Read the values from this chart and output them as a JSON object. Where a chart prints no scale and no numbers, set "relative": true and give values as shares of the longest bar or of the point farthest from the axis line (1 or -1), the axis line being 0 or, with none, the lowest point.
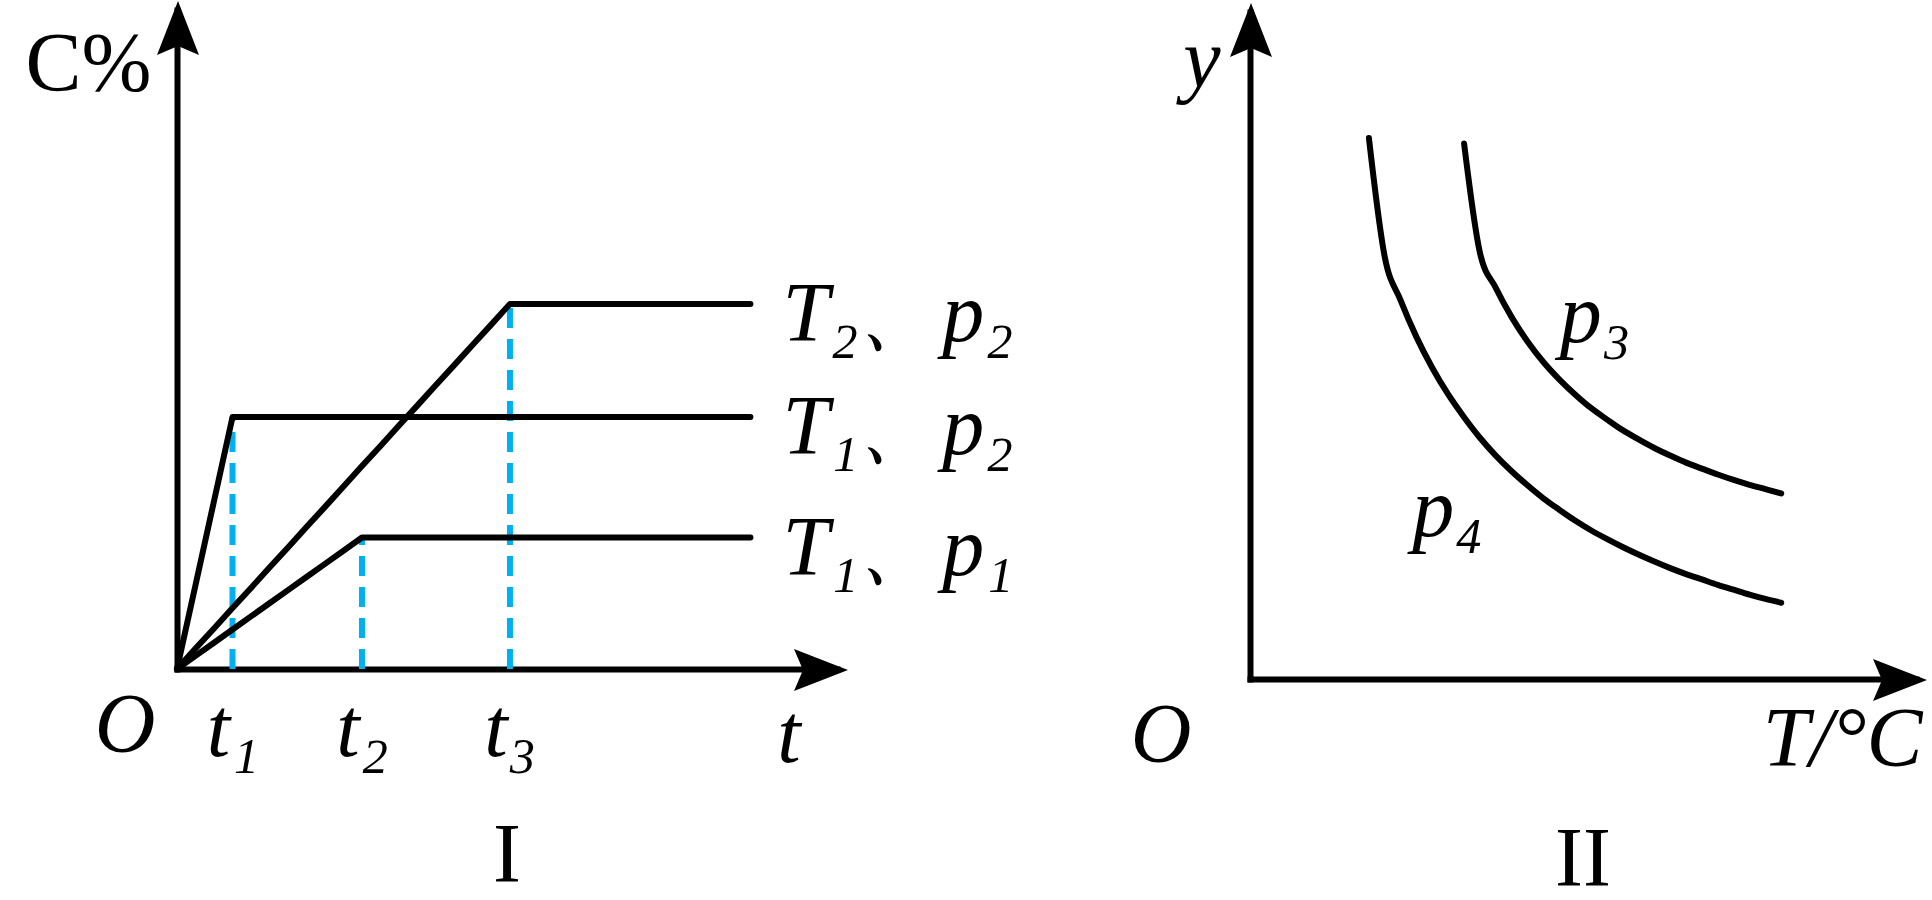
{
  "chart_data": [
    {
      "type": "line",
      "title": "I",
      "xlabel": "t",
      "ylabel": "C%",
      "relative": true,
      "categories": [
        null,
        null,
        null,
        "t₁",
        null,
        null,
        null,
        null,
        null,
        null,
        "t₂",
        null,
        null,
        null,
        null,
        null,
        null,
        null,
        "t₃",
        null,
        null,
        null,
        null,
        null,
        null,
        null,
        null,
        null,
        null,
        null,
        null,
        null,
        null,
        null,
        null,
        null
      ],
      "tick_labels": "x",
      "line_style": "solid",
      "annotations": [
        "O"
      ],
      "series": [
        {
          "color": "#00b0f0",
          "line_style": "dashed",
          "x": [
            "t₁",
            "t₁"
          ],
          "values": [
            0,
            0.69
          ]
        },
        {
          "color": "#00b0f0",
          "line_style": "dashed",
          "x": [
            "t₂",
            "t₂"
          ],
          "values": [
            0,
            0.36
          ]
        },
        {
          "color": "#00b0f0",
          "line_style": "dashed",
          "x": [
            "t₃",
            "t₃"
          ],
          "values": [
            0,
            1
          ]
        },
        {
          "name": "T₂、p₂",
          "color": "#000000",
          "values": [
            0,
            0.056,
            0.111,
            0.167,
            0.222,
            0.278,
            0.333,
            0.389,
            0.444,
            0.5,
            0.556,
            0.611,
            0.667,
            0.722,
            0.778,
            0.833,
            0.889,
            0.944,
            1,
            1,
            1,
            1,
            1,
            1,
            1,
            1,
            1,
            1,
            1,
            1,
            1,
            1,
            null,
            null,
            null,
            null
          ]
        },
        {
          "name": "T₁、p₂",
          "color": "#000000",
          "values": [
            0,
            0.23,
            0.46,
            0.69,
            0.69,
            0.69,
            0.69,
            0.69,
            0.69,
            0.69,
            0.69,
            0.69,
            0.69,
            0.69,
            0.69,
            0.69,
            0.69,
            0.69,
            0.69,
            0.69,
            0.69,
            0.69,
            0.69,
            0.69,
            0.69,
            0.69,
            0.69,
            0.69,
            0.69,
            0.69,
            0.69,
            0.69,
            null,
            null,
            null,
            null
          ]
        },
        {
          "name": "T₁、p₁",
          "color": "#000000",
          "values": [
            0,
            0.036,
            0.072,
            0.108,
            0.144,
            0.18,
            0.216,
            0.252,
            0.288,
            0.324,
            0.36,
            0.36,
            0.36,
            0.36,
            0.36,
            0.36,
            0.36,
            0.36,
            0.36,
            0.36,
            0.36,
            0.36,
            0.36,
            0.36,
            0.36,
            0.36,
            0.36,
            0.36,
            0.36,
            0.36,
            0.36,
            0.36,
            null,
            null,
            null,
            null
          ]
        }
      ]
    },
    {
      "type": "line",
      "title": "II",
      "xlabel": "T/°C",
      "ylabel": "y",
      "relative": true,
      "categories": [
        null,
        null,
        null,
        null,
        null,
        null,
        null,
        null,
        null,
        null,
        null,
        null,
        null,
        null,
        null,
        null,
        null,
        null,
        null,
        null,
        null,
        null,
        null,
        null,
        null,
        null,
        null,
        null,
        null,
        null,
        null,
        null,
        null,
        null,
        null,
        null,
        null,
        null,
        null,
        null,
        null,
        null
      ],
      "tick_labels": false,
      "line_style": "solid",
      "annotations": [
        "O"
      ],
      "series": [
        {
          "name": "p₃",
          "color": "#000000",
          "values": [
            null,
            null,
            null,
            null,
            null,
            null,
            null,
            null,
            null,
            null,
            null,
            null,
            null,
            0.99,
            0.788,
            0.723,
            0.669,
            0.624,
            0.586,
            0.554,
            0.526,
            0.501,
            0.48,
            0.46,
            0.443,
            0.427,
            0.413,
            0.4,
            0.389,
            0.378,
            0.368,
            0.359,
            0.351,
            0.343,
            null,
            null,
            null,
            null,
            null,
            null,
            null,
            null
          ]
        },
        {
          "name": "p₄",
          "color": "#000000",
          "values": [
            null,
            null,
            null,
            null,
            null,
            null,
            null,
            1,
            0.78,
            0.7,
            0.632,
            0.575,
            0.526,
            0.484,
            0.446,
            0.413,
            0.384,
            0.358,
            0.334,
            0.313,
            0.293,
            0.275,
            0.259,
            0.244,
            0.23,
            0.217,
            0.205,
            0.194,
            0.184,
            0.174,
            0.165,
            0.156,
            0.148,
            0.141,
            null,
            null,
            null,
            null,
            null,
            null,
            null,
            null
          ]
        }
      ]
    }
  ]
}
